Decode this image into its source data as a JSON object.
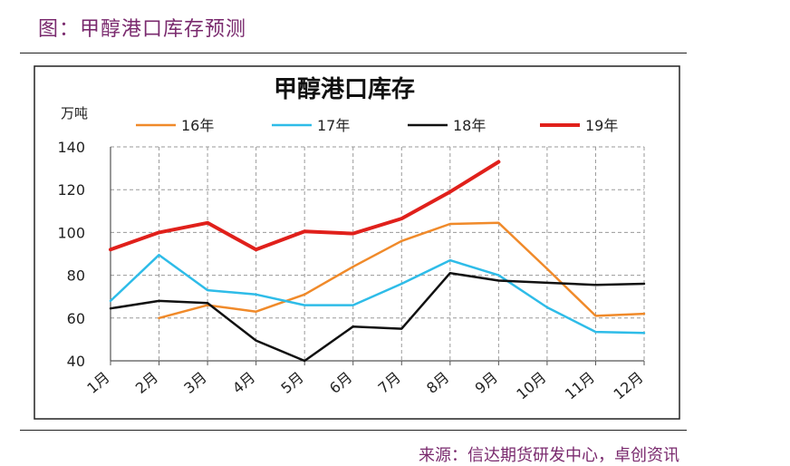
{
  "figure": {
    "title": "图：甲醇港口库存预测",
    "source": "来源：信达期货研发中心，卓创资讯"
  },
  "colors": {
    "s16": "#f08a2a",
    "s17": "#2ebce8",
    "s18": "#111111",
    "s19": "#e0201b",
    "grid": "#9a9a9a",
    "frame": "#222222"
  },
  "chart_data": {
    "type": "line",
    "title": "甲醇港口库存",
    "ylabel": "万吨",
    "xlabel": "",
    "ylim": [
      40,
      140
    ],
    "yticks": [
      40,
      60,
      80,
      100,
      120,
      140
    ],
    "categories": [
      "1月",
      "2月",
      "3月",
      "4月",
      "5月",
      "6月",
      "7月",
      "8月",
      "9月",
      "10月",
      "11月",
      "12月"
    ],
    "grid": true,
    "legend_position": "top",
    "series": [
      {
        "name": "16年",
        "colorKey": "s16",
        "width": 2.5,
        "values": [
          null,
          60,
          66,
          63,
          71,
          84,
          96,
          104,
          104.5,
          83,
          61,
          62
        ]
      },
      {
        "name": "17年",
        "colorKey": "s17",
        "width": 2.5,
        "values": [
          68,
          89.5,
          73,
          71,
          66,
          66,
          76,
          87,
          80,
          65,
          53.5,
          53
        ]
      },
      {
        "name": "18年",
        "colorKey": "s18",
        "width": 2.5,
        "values": [
          64.5,
          68,
          67,
          49.5,
          40,
          56,
          55,
          81,
          77.5,
          76.5,
          75.5,
          76
        ]
      },
      {
        "name": "19年",
        "colorKey": "s19",
        "width": 4,
        "values": [
          92,
          100,
          104.5,
          92,
          100.5,
          99.5,
          106.5,
          119,
          133,
          null,
          null,
          null
        ]
      }
    ]
  }
}
